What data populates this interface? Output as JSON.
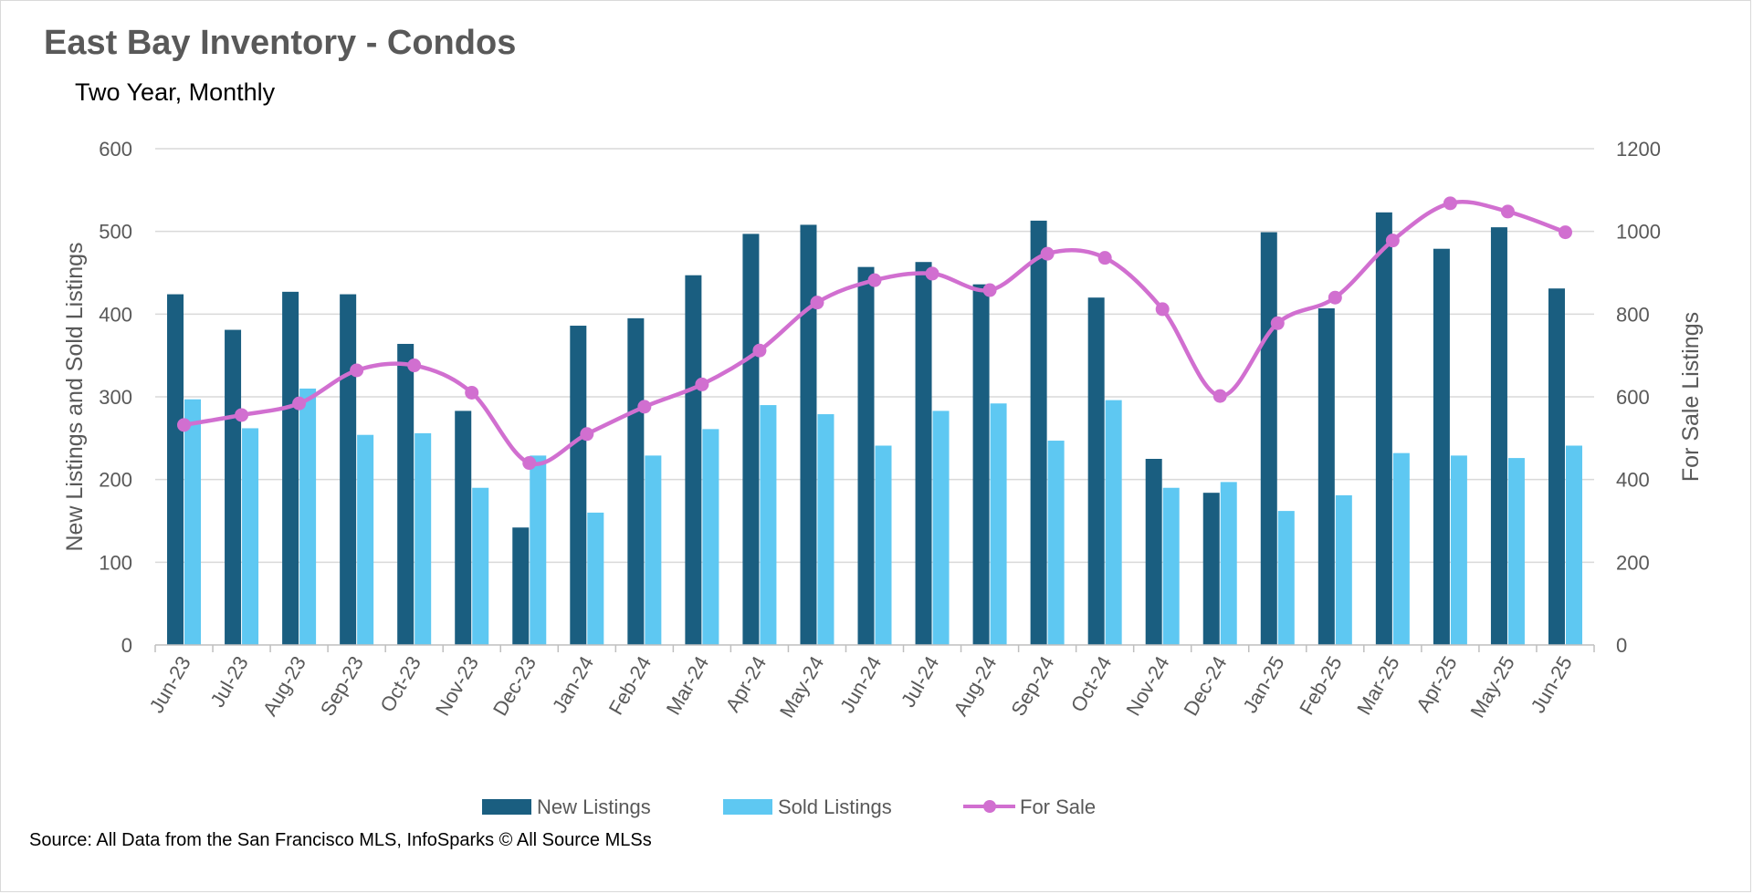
{
  "chart_data": {
    "type": "bar",
    "title": "East Bay Inventory - Condos",
    "subtitle": "Two Year, Monthly",
    "source": "Source: All Data from the San Francisco MLS, InfoSparks © All Source MLSs",
    "categories": [
      "Jun-23",
      "Jul-23",
      "Aug-23",
      "Sep-23",
      "Oct-23",
      "Nov-23",
      "Dec-23",
      "Jan-24",
      "Feb-24",
      "Mar-24",
      "Apr-24",
      "May-24",
      "Jun-24",
      "Jul-24",
      "Aug-24",
      "Sep-24",
      "Oct-24",
      "Nov-24",
      "Dec-24",
      "Jan-25",
      "Feb-25",
      "Mar-25",
      "Apr-25",
      "May-25",
      "Jun-25"
    ],
    "ylabel_left": "New Listings and Sold Listings",
    "ylabel_right": "For Sale Listings",
    "ylim_left": [
      0,
      600
    ],
    "ylim_right": [
      0,
      1200
    ],
    "yticks_left": [
      "0",
      "100",
      "200",
      "300",
      "400",
      "500",
      "600"
    ],
    "yticks_right": [
      "0",
      "200",
      "400",
      "600",
      "800",
      "1000",
      "1200"
    ],
    "grid": true,
    "legend_position": "bottom",
    "series": [
      {
        "name": "New Listings",
        "kind": "bar",
        "axis": "left",
        "color": "#1a5e80",
        "values": [
          424,
          381,
          427,
          424,
          364,
          283,
          142,
          386,
          395,
          447,
          497,
          508,
          457,
          463,
          436,
          513,
          420,
          225,
          184,
          499,
          407,
          523,
          479,
          505,
          431
        ]
      },
      {
        "name": "Sold Listings",
        "kind": "bar",
        "axis": "left",
        "color": "#5ec8f2",
        "values": [
          297,
          262,
          310,
          254,
          256,
          190,
          229,
          160,
          229,
          261,
          290,
          279,
          241,
          283,
          292,
          247,
          296,
          190,
          197,
          162,
          181,
          232,
          229,
          226,
          241
        ]
      },
      {
        "name": "For Sale",
        "kind": "line",
        "axis": "right",
        "color": "#d16fd0",
        "values": [
          532,
          556,
          584,
          664,
          676,
          610,
          440,
          510,
          576,
          630,
          712,
          828,
          882,
          898,
          858,
          946,
          936,
          812,
          602,
          778,
          840,
          978,
          1068,
          1048,
          998
        ]
      }
    ]
  }
}
